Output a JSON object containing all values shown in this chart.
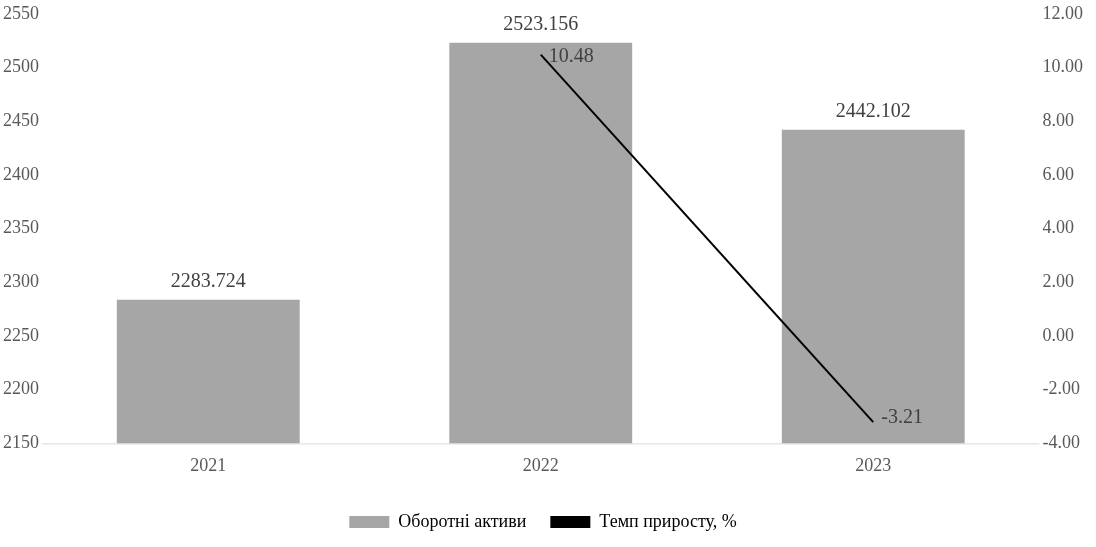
{
  "chart_data": {
    "type": "bar",
    "categories": [
      "2021",
      "2022",
      "2023"
    ],
    "series": [
      {
        "name": "Оборотні активи",
        "color": "#a6a6a6",
        "values": [
          2283.724,
          2523.156,
          2442.102
        ]
      },
      {
        "name": "Темп приросту, %",
        "type": "line",
        "axis": "y2",
        "color": "#000000",
        "values": [
          null,
          10.48,
          -3.21
        ]
      }
    ],
    "ylim": [
      2150,
      2550
    ],
    "yticks": [
      2150,
      2200,
      2250,
      2300,
      2350,
      2400,
      2450,
      2500,
      2550
    ],
    "y2lim": [
      -4,
      12
    ],
    "y2ticks": [
      {
        "value": -4,
        "label": "-4.00"
      },
      {
        "value": -2,
        "label": "-2.00"
      },
      {
        "value": 0,
        "label": "0.00"
      },
      {
        "value": 2,
        "label": "2.00"
      },
      {
        "value": 4,
        "label": "4.00"
      },
      {
        "value": 6,
        "label": "6.00"
      },
      {
        "value": 8,
        "label": "8.00"
      },
      {
        "value": 10,
        "label": "10.00"
      },
      {
        "value": 12,
        "label": "12.00"
      }
    ],
    "data_labels": true,
    "grid": false,
    "legend": "bottom",
    "marker": "none",
    "line_style": "solid"
  }
}
